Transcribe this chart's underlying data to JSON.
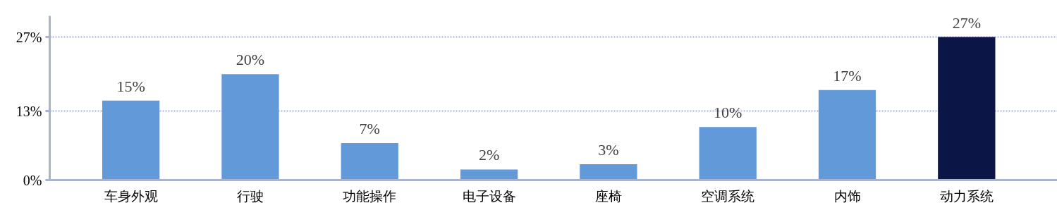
{
  "chart_data": {
    "type": "bar",
    "categories": [
      "车身外观",
      "行驶",
      "功能操作",
      "电子设备",
      "座椅",
      "空调系统",
      "内饰",
      "动力系统"
    ],
    "values": [
      15,
      20,
      7,
      2,
      3,
      10,
      17,
      27
    ],
    "colors": [
      "#6199d9",
      "#6199d9",
      "#6199d9",
      "#6199d9",
      "#6199d9",
      "#6199d9",
      "#6199d9",
      "#0b1546"
    ],
    "value_labels": [
      "15%",
      "20%",
      "7%",
      "2%",
      "3%",
      "10%",
      "17%",
      "27%"
    ],
    "ylim": [
      0,
      31
    ],
    "yticks": [
      {
        "value": 0,
        "label": "0%"
      },
      {
        "value": 13,
        "label": "13%"
      },
      {
        "value": 27,
        "label": "27%"
      }
    ],
    "grid": "y"
  }
}
